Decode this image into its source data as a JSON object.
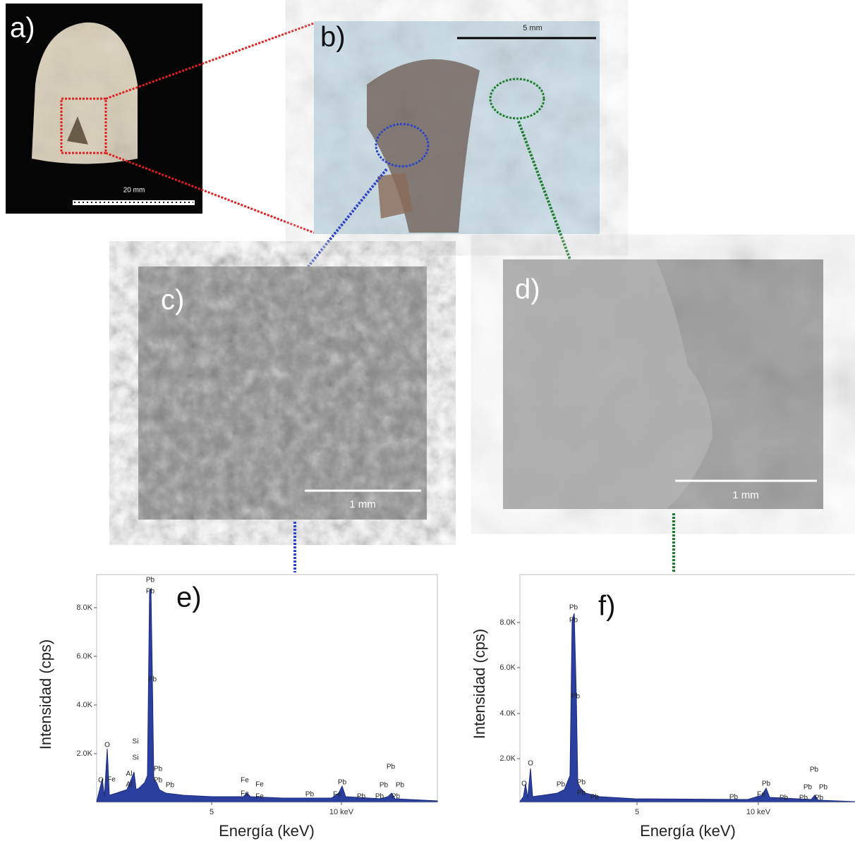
{
  "panels": {
    "a": {
      "label": "a)",
      "scale": "20 mm"
    },
    "b": {
      "label": "b)",
      "scale": "5 mm"
    },
    "c": {
      "label": "c)",
      "scale": "1 mm"
    },
    "d": {
      "label": "d)",
      "scale": "1 mm"
    },
    "e": {
      "label": "e)",
      "y_label": "Intensidad (cps)",
      "x_label": "Energía (keV)",
      "yticks": [
        "8.0K",
        "6.0K",
        "4.0K",
        "2.0K"
      ],
      "xticks": [
        "5",
        "10 keV"
      ],
      "peaks": [
        "Pb",
        "Pb",
        "Pb",
        "O",
        "Si",
        "Si",
        "Al",
        "Al",
        "Pb",
        "Pb",
        "Pb",
        "O",
        "Fe",
        "Fe",
        "Fe",
        "Fe",
        "Fe",
        "Pb",
        "Pb",
        "Fe",
        "Pb",
        "Pb",
        "Pb",
        "Pb",
        "Pb",
        "Pb"
      ]
    },
    "f": {
      "label": "f)",
      "y_label": "Intensidad (cps)",
      "x_label": "Energía (keV)",
      "yticks": [
        "8.0K",
        "6.0K",
        "4.0K",
        "2.0K"
      ],
      "xticks": [
        "5",
        "10 keV"
      ],
      "peaks": [
        "Pb",
        "Pb",
        "Pb",
        "O",
        "O",
        "Pb",
        "Pb",
        "Pb",
        "Pb",
        "Pb",
        "Pb",
        "Fe",
        "Pb",
        "Pb",
        "Pb",
        "Pb",
        "Pb",
        "Pb"
      ]
    }
  }
}
